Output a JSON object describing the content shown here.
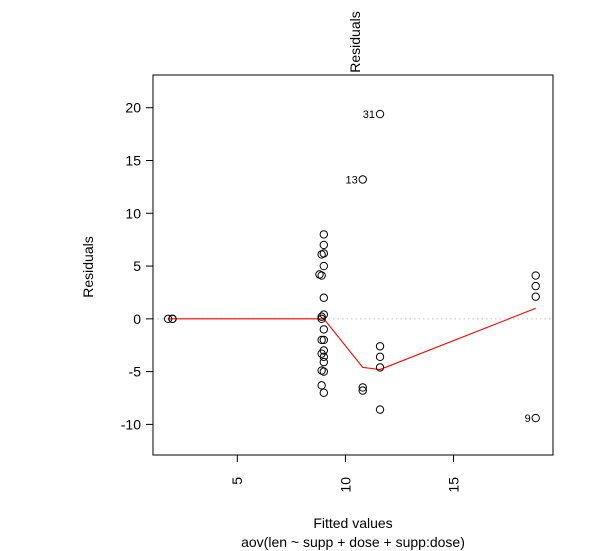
{
  "chart_data": {
    "type": "scatter",
    "title": "Residuals",
    "xlabel": "Fitted values",
    "subtitle": "aov(len ~ supp + dose + supp:dose)",
    "ylabel": "Residuals",
    "xlim": [
      1.1,
      19.6
    ],
    "ylim": [
      -12.9,
      23.1
    ],
    "x_ticks": [
      5,
      10,
      15
    ],
    "y_ticks": [
      -10,
      -5,
      0,
      5,
      10,
      15,
      20
    ],
    "grid": false,
    "reference_line": {
      "y": 0,
      "style": "dotted",
      "color": "#bebebe"
    },
    "points": [
      {
        "x": 1.8,
        "y": 0.0
      },
      {
        "x": 2.0,
        "y": 0.0
      },
      {
        "x": 2.0,
        "y": 0.0
      },
      {
        "x": 9.0,
        "y": 8.0
      },
      {
        "x": 9.0,
        "y": 7.0
      },
      {
        "x": 9.0,
        "y": 6.2
      },
      {
        "x": 8.9,
        "y": 6.1
      },
      {
        "x": 9.0,
        "y": 5.0
      },
      {
        "x": 8.8,
        "y": 4.2
      },
      {
        "x": 8.9,
        "y": 4.1
      },
      {
        "x": 9.0,
        "y": 2.0
      },
      {
        "x": 9.0,
        "y": 0.4
      },
      {
        "x": 8.9,
        "y": 0.2
      },
      {
        "x": 8.9,
        "y": 0.0
      },
      {
        "x": 9.0,
        "y": -1.0
      },
      {
        "x": 9.0,
        "y": -2.0
      },
      {
        "x": 8.9,
        "y": -2.0
      },
      {
        "x": 9.0,
        "y": -3.0
      },
      {
        "x": 8.9,
        "y": -3.3
      },
      {
        "x": 9.0,
        "y": -3.6
      },
      {
        "x": 9.0,
        "y": -4.1
      },
      {
        "x": 8.9,
        "y": -4.9
      },
      {
        "x": 9.0,
        "y": -5.0
      },
      {
        "x": 8.9,
        "y": -6.3
      },
      {
        "x": 9.0,
        "y": -7.0
      },
      {
        "x": 10.8,
        "y": 13.2,
        "label": "13"
      },
      {
        "x": 10.8,
        "y": -6.5
      },
      {
        "x": 10.8,
        "y": -6.8
      },
      {
        "x": 11.6,
        "y": 19.4,
        "label": "31"
      },
      {
        "x": 11.6,
        "y": -2.6
      },
      {
        "x": 11.6,
        "y": -3.6
      },
      {
        "x": 11.6,
        "y": -4.6
      },
      {
        "x": 11.6,
        "y": -8.6
      },
      {
        "x": 18.8,
        "y": 4.1
      },
      {
        "x": 18.8,
        "y": 3.1
      },
      {
        "x": 18.8,
        "y": 2.1
      },
      {
        "x": 18.8,
        "y": -9.4,
        "label": "9"
      }
    ],
    "smoother": {
      "color": "#ff0000",
      "points": [
        [
          1.8,
          0.0
        ],
        [
          2.0,
          0.0
        ],
        [
          9.0,
          0.0
        ],
        [
          10.8,
          -4.6
        ],
        [
          11.6,
          -4.8
        ],
        [
          18.8,
          1.0
        ]
      ]
    }
  }
}
